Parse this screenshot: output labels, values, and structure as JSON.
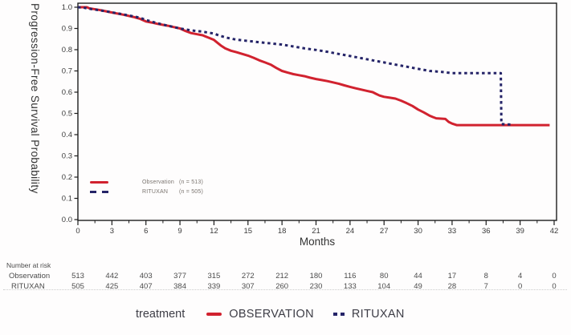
{
  "colors": {
    "observation": "#d1222f",
    "rituxan": "#252468",
    "axis": "#1c1c1c",
    "tick_text": "#3b3b3b",
    "risk_text": "#4c4c4c",
    "inner_legend_text": "#7a746f",
    "bottom_legend_text": "#3d3d46"
  },
  "chart_data": {
    "type": "line",
    "subtype": "kaplan-meier",
    "title": "",
    "xlabel": "Months",
    "ylabel": "Progression-Free Survival Probability",
    "xlim": [
      0,
      42
    ],
    "ylim": [
      0.0,
      1.0
    ],
    "x_ticks": [
      0,
      3,
      6,
      9,
      12,
      15,
      18,
      21,
      24,
      27,
      30,
      33,
      36,
      39,
      42
    ],
    "x_minor_tick_step": 1.5,
    "y_ticks": [
      "0.0",
      "0.1",
      "0.2",
      "0.3",
      "0.4",
      "0.5",
      "0.6",
      "0.7",
      "0.8",
      "0.9",
      "1.0"
    ],
    "grid": false,
    "legend_position": "inside-lower-left",
    "series": [
      {
        "name": "Observation (n = 513)",
        "color": "#d1222f",
        "dash": "solid",
        "points": [
          [
            0,
            1.0
          ],
          [
            0.8,
            1.0
          ],
          [
            1,
            0.995
          ],
          [
            2,
            0.986
          ],
          [
            3,
            0.975
          ],
          [
            4,
            0.965
          ],
          [
            5,
            0.953
          ],
          [
            5.5,
            0.945
          ],
          [
            6,
            0.933
          ],
          [
            6.5,
            0.928
          ],
          [
            7,
            0.922
          ],
          [
            7.5,
            0.917
          ],
          [
            8,
            0.912
          ],
          [
            8.5,
            0.906
          ],
          [
            9,
            0.9
          ],
          [
            9.5,
            0.888
          ],
          [
            10,
            0.878
          ],
          [
            10.5,
            0.873
          ],
          [
            11,
            0.868
          ],
          [
            11.5,
            0.857
          ],
          [
            12,
            0.846
          ],
          [
            12.3,
            0.833
          ],
          [
            12.6,
            0.82
          ],
          [
            13,
            0.806
          ],
          [
            13.5,
            0.795
          ],
          [
            14,
            0.788
          ],
          [
            14.5,
            0.78
          ],
          [
            15,
            0.772
          ],
          [
            15.5,
            0.762
          ],
          [
            16,
            0.75
          ],
          [
            16.5,
            0.74
          ],
          [
            17,
            0.73
          ],
          [
            17.5,
            0.714
          ],
          [
            18,
            0.7
          ],
          [
            18.5,
            0.692
          ],
          [
            19,
            0.685
          ],
          [
            19.5,
            0.68
          ],
          [
            20,
            0.675
          ],
          [
            20.5,
            0.668
          ],
          [
            21,
            0.662
          ],
          [
            21.5,
            0.657
          ],
          [
            22,
            0.652
          ],
          [
            22.5,
            0.646
          ],
          [
            23,
            0.64
          ],
          [
            23.5,
            0.632
          ],
          [
            24,
            0.625
          ],
          [
            24.5,
            0.618
          ],
          [
            25,
            0.612
          ],
          [
            25.5,
            0.606
          ],
          [
            26,
            0.6
          ],
          [
            26.3,
            0.592
          ],
          [
            26.6,
            0.584
          ],
          [
            27,
            0.578
          ],
          [
            27.5,
            0.574
          ],
          [
            28,
            0.57
          ],
          [
            28.5,
            0.56
          ],
          [
            29,
            0.548
          ],
          [
            29.5,
            0.535
          ],
          [
            30,
            0.518
          ],
          [
            30.5,
            0.505
          ],
          [
            31,
            0.49
          ],
          [
            31.3,
            0.483
          ],
          [
            31.6,
            0.477
          ],
          [
            32.4,
            0.474
          ],
          [
            32.7,
            0.46
          ],
          [
            33,
            0.452
          ],
          [
            33.4,
            0.445
          ],
          [
            41.6,
            0.445
          ]
        ]
      },
      {
        "name": "RITUXAN (n = 505)",
        "color": "#252468",
        "dash": "dashed",
        "points": [
          [
            0,
            1.0
          ],
          [
            0.5,
            0.998
          ],
          [
            1,
            0.993
          ],
          [
            2,
            0.985
          ],
          [
            3,
            0.976
          ],
          [
            4,
            0.966
          ],
          [
            5,
            0.956
          ],
          [
            5.5,
            0.95
          ],
          [
            6,
            0.94
          ],
          [
            6.5,
            0.932
          ],
          [
            7,
            0.925
          ],
          [
            7.5,
            0.918
          ],
          [
            8,
            0.912
          ],
          [
            8.5,
            0.906
          ],
          [
            9,
            0.9
          ],
          [
            9.5,
            0.895
          ],
          [
            10,
            0.891
          ],
          [
            11,
            0.885
          ],
          [
            12,
            0.876
          ],
          [
            12.5,
            0.866
          ],
          [
            13,
            0.858
          ],
          [
            13.5,
            0.852
          ],
          [
            14,
            0.847
          ],
          [
            15,
            0.841
          ],
          [
            16,
            0.835
          ],
          [
            17,
            0.83
          ],
          [
            18,
            0.824
          ],
          [
            19,
            0.815
          ],
          [
            20,
            0.806
          ],
          [
            21,
            0.799
          ],
          [
            22,
            0.79
          ],
          [
            23,
            0.78
          ],
          [
            24,
            0.77
          ],
          [
            25,
            0.76
          ],
          [
            26,
            0.75
          ],
          [
            27,
            0.74
          ],
          [
            28,
            0.73
          ],
          [
            29,
            0.72
          ],
          [
            30,
            0.71
          ],
          [
            31,
            0.7
          ],
          [
            32,
            0.696
          ],
          [
            33,
            0.69
          ],
          [
            37.3,
            0.69
          ],
          [
            37.35,
            0.45
          ],
          [
            38.3,
            0.447
          ]
        ]
      }
    ]
  },
  "inner_legend": {
    "items": [
      {
        "name": "Observation",
        "n": "(n = 513)",
        "style": "solid",
        "color": "#d1222f"
      },
      {
        "name": "RITUXAN",
        "n": "(n = 505)",
        "style": "dashed",
        "color": "#252468"
      }
    ]
  },
  "risk_table": {
    "title": "Number at risk",
    "columns_months": [
      0,
      3,
      6,
      9,
      12,
      15,
      18,
      21,
      24,
      27,
      30,
      33,
      36,
      39,
      42
    ],
    "rows": [
      {
        "label": "Observation",
        "values": [
          "513",
          "442",
          "403",
          "377",
          "315",
          "272",
          "212",
          "180",
          "116",
          "80",
          "44",
          "17",
          "8",
          "4",
          "0"
        ]
      },
      {
        "label": "RITUXAN",
        "values": [
          "505",
          "425",
          "407",
          "384",
          "339",
          "307",
          "260",
          "230",
          "133",
          "104",
          "49",
          "28",
          "7",
          "0",
          "0"
        ]
      }
    ]
  },
  "bottom_legend": {
    "title": "treatment",
    "items": [
      {
        "label": "OBSERVATION",
        "style": "solid",
        "color": "#d1222f"
      },
      {
        "label": "RITUXAN",
        "style": "dashed",
        "color": "#252468"
      }
    ]
  }
}
